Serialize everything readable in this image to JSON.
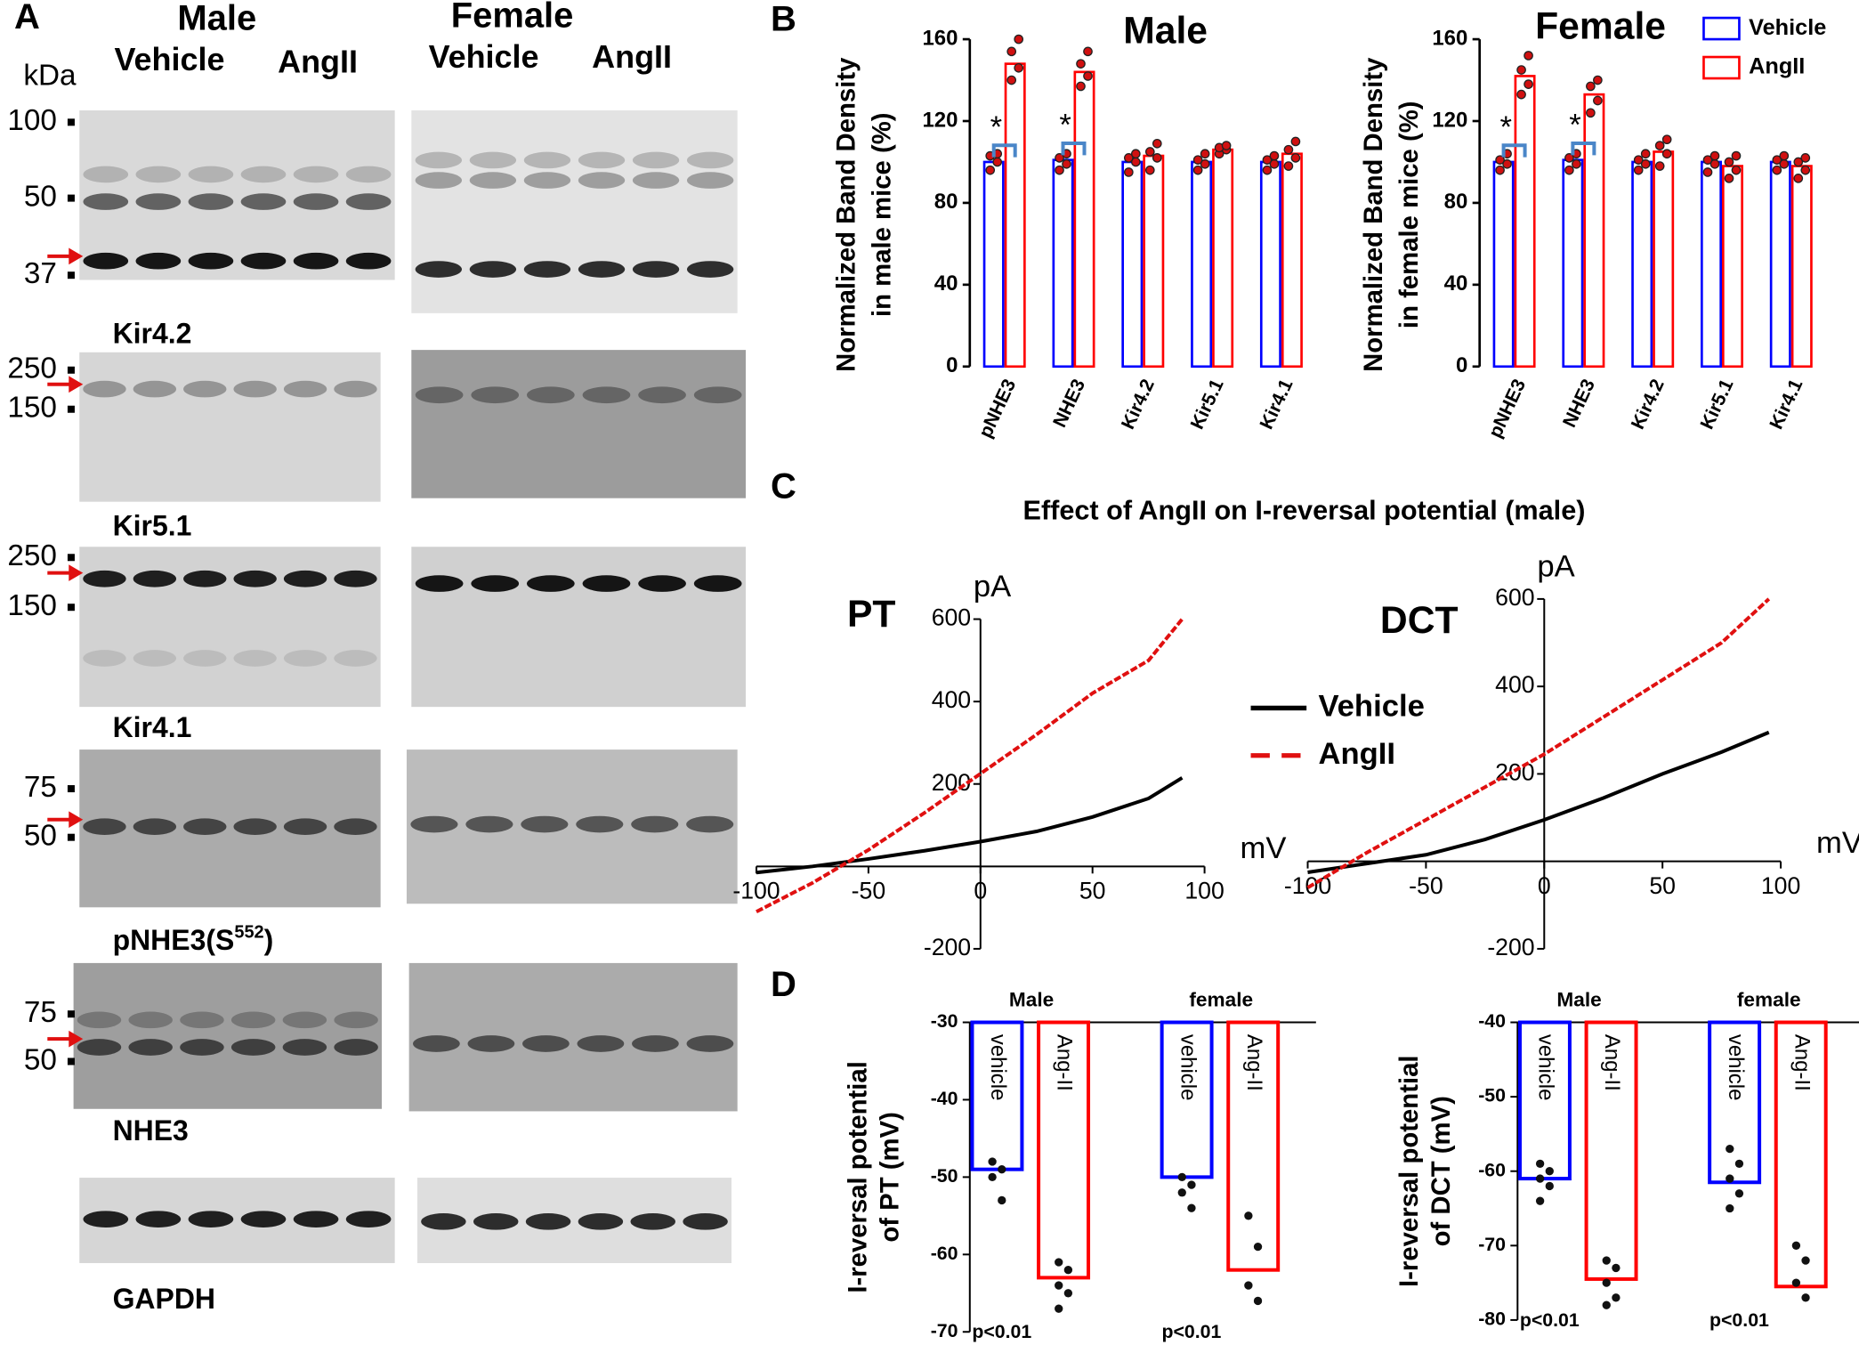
{
  "panel_labels": {
    "a": "A",
    "b": "B",
    "c": "C",
    "d": "D"
  },
  "blots": {
    "groups": [
      "Male",
      "Female"
    ],
    "lanes": [
      "Vehicle",
      "AngII",
      "Vehicle",
      "AngII"
    ],
    "kda": "kDa",
    "rows": [
      {
        "name": "Kir4.2",
        "markers": [
          "100",
          "50",
          "37"
        ]
      },
      {
        "name": "Kir5.1",
        "markers": [
          "250",
          "150"
        ]
      },
      {
        "name": "Kir4.1",
        "markers": [
          "250",
          "150"
        ]
      },
      {
        "name_parts": [
          "pNHE3(S",
          "552",
          ")"
        ],
        "markers": [
          "75",
          "50"
        ]
      },
      {
        "name": "NHE3",
        "markers": [
          "75",
          "50"
        ]
      },
      {
        "name": "GAPDH"
      }
    ]
  },
  "panel_c_title": "Effect of AngII on I-reversal potential (male)",
  "chart_data": [
    {
      "type": "bar",
      "title": "Male",
      "ylabel": [
        "Normalized Band Density",
        "in male mice (%)"
      ],
      "categories": [
        "pNHE3",
        "NHE3",
        "Kir4.2",
        "Kir5.1",
        "Kir4.1"
      ],
      "ylim": [
        0,
        160
      ],
      "yticks": [
        0,
        40,
        80,
        120,
        160
      ],
      "point_color": "#d01010",
      "significance_labels": [
        "*",
        "*",
        null,
        null,
        null
      ],
      "series": [
        {
          "color": "#0000ff",
          "values": [
            100,
            101,
            100,
            100,
            100
          ],
          "points": [
            [
              96,
              100,
              103,
              104
            ],
            [
              96,
              99,
              102,
              104
            ],
            [
              95,
              100,
              102,
              104
            ],
            [
              96,
              99,
              101,
              104
            ],
            [
              96,
              99,
              101,
              103
            ]
          ]
        },
        {
          "color": "#ff0000",
          "values": [
            148,
            144,
            103,
            106,
            104
          ],
          "points": [
            [
              140,
              146,
              154,
              160
            ],
            [
              137,
              142,
              148,
              154
            ],
            [
              96,
              102,
              105,
              109
            ],
            [
              104,
              106,
              107,
              108
            ],
            [
              98,
              102,
              106,
              110
            ]
          ]
        }
      ]
    },
    {
      "type": "bar",
      "title": "Female",
      "ylabel": [
        "Normalized Band Density",
        "in female mice (%)"
      ],
      "categories": [
        "pNHE3",
        "NHE3",
        "Kir4.2",
        "Kir5.1",
        "Kir4.1"
      ],
      "ylim": [
        0,
        160
      ],
      "yticks": [
        0,
        40,
        80,
        120,
        160
      ],
      "point_color": "#d01010",
      "legend": "top-right",
      "significance_labels": [
        "*",
        "*",
        null,
        null,
        null
      ],
      "series": [
        {
          "name": "Vehicle",
          "color": "#0000ff",
          "values": [
            100,
            101,
            100,
            100,
            100
          ],
          "points": [
            [
              96,
              99,
              101,
              104
            ],
            [
              96,
              99,
              102,
              104
            ],
            [
              96,
              99,
              101,
              104
            ],
            [
              95,
              99,
              101,
              103
            ],
            [
              96,
              99,
              101,
              103
            ]
          ]
        },
        {
          "name": "AngII",
          "color": "#ff0000",
          "values": [
            142,
            133,
            105,
            98,
            98
          ],
          "points": [
            [
              133,
              138,
              145,
              152
            ],
            [
              124,
              130,
              137,
              140
            ],
            [
              98,
              104,
              108,
              111
            ],
            [
              92,
              96,
              100,
              103
            ],
            [
              92,
              96,
              100,
              102
            ]
          ]
        }
      ]
    },
    {
      "type": "line",
      "title": "PT",
      "xlabel": "mV",
      "ylabel": "pA",
      "legend": "center-right",
      "x": [
        -100,
        -75,
        -50,
        -25,
        0,
        25,
        50,
        75,
        90
      ],
      "xlim": [
        -100,
        100
      ],
      "xticks": [
        -100,
        -50,
        0,
        50,
        100
      ],
      "ylim": [
        -200,
        600
      ],
      "yticks": [
        -200,
        200,
        400,
        600
      ],
      "series": [
        {
          "name": "Vehicle",
          "color": "#000000",
          "dashed": false,
          "values": [
            -15,
            0,
            18,
            38,
            60,
            85,
            120,
            165,
            215
          ]
        },
        {
          "name": "AngII",
          "color": "#e01010",
          "dashed": true,
          "values": [
            -110,
            -40,
            40,
            130,
            225,
            320,
            420,
            500,
            600
          ]
        }
      ]
    },
    {
      "type": "line",
      "title": "DCT",
      "xlabel": "mV",
      "ylabel": "pA",
      "x": [
        -100,
        -75,
        -50,
        -25,
        0,
        25,
        50,
        75,
        95
      ],
      "xlim": [
        -100,
        100
      ],
      "xticks": [
        -100,
        -50,
        0,
        50,
        100
      ],
      "ylim": [
        -200,
        600
      ],
      "yticks": [
        -200,
        200,
        400,
        600
      ],
      "series": [
        {
          "color": "#000000",
          "dashed": false,
          "values": [
            -25,
            -5,
            15,
            50,
            95,
            145,
            200,
            250,
            295
          ]
        },
        {
          "color": "#e01010",
          "dashed": true,
          "values": [
            -60,
            20,
            95,
            170,
            245,
            330,
            415,
            500,
            600
          ]
        }
      ]
    },
    {
      "type": "hanging-bar",
      "ylabel": [
        "I-reversal potential",
        "of PT (mV)"
      ],
      "categories": [
        "Male",
        "female"
      ],
      "p_labels": [
        "p<0.01",
        "p<0.01"
      ],
      "ylim": [
        -70,
        -30
      ],
      "yticks": [
        -70,
        -60,
        -50,
        -40,
        -30
      ],
      "series": [
        {
          "name": "vehicle",
          "color": "#0000ff",
          "values": [
            -49,
            -50
          ],
          "points": [
            [
              -48,
              -49,
              -50,
              -53
            ],
            [
              -50,
              -51,
              -52,
              -54
            ]
          ]
        },
        {
          "name": "Ang-II",
          "color": "#ff0000",
          "values": [
            -63,
            -62
          ],
          "points": [
            [
              -61,
              -62,
              -64,
              -65,
              -67
            ],
            [
              -55,
              -59,
              -64,
              -66
            ]
          ]
        }
      ]
    },
    {
      "type": "hanging-bar",
      "ylabel": [
        "I-reversal potential",
        "of DCT (mV)"
      ],
      "categories": [
        "Male",
        "female"
      ],
      "p_labels": [
        "p<0.01",
        "p<0.01"
      ],
      "ylim": [
        -80,
        -40
      ],
      "yticks": [
        -80,
        -70,
        -60,
        -50,
        -40
      ],
      "series": [
        {
          "name": "vehicle",
          "color": "#0000ff",
          "values": [
            -61,
            -61.5
          ],
          "points": [
            [
              -59,
              -60,
              -61,
              -62,
              -64
            ],
            [
              -57,
              -59,
              -61,
              -63,
              -65
            ]
          ]
        },
        {
          "name": "Ang-II",
          "color": "#ff0000",
          "values": [
            -74.5,
            -75.5
          ],
          "points": [
            [
              -72,
              -73,
              -75,
              -77,
              -78
            ],
            [
              -70,
              -72,
              -75,
              -77
            ]
          ]
        }
      ]
    }
  ]
}
